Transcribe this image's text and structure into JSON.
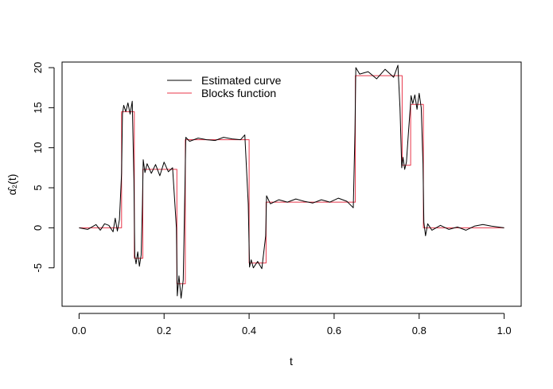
{
  "chart_data": {
    "type": "line",
    "title": "",
    "xlabel": "t",
    "ylabel": "α̂₂(t)",
    "xlim": [
      -0.04,
      1.04
    ],
    "ylim": [
      -9.8,
      20.7
    ],
    "x_ticks": [
      0.0,
      0.2,
      0.4,
      0.6,
      0.8,
      1.0
    ],
    "x_tick_labels": [
      "0.0",
      "0.2",
      "0.4",
      "0.6",
      "0.8",
      "1.0"
    ],
    "y_ticks": [
      -5,
      0,
      5,
      10,
      15,
      20
    ],
    "y_tick_labels": [
      "-5",
      "0",
      "5",
      "10",
      "15",
      "20"
    ],
    "grid": false,
    "legend_position": "top-left",
    "series": [
      {
        "name": "Blocks function",
        "color": "#e8364a",
        "interpolation": "step",
        "x": [
          0.0,
          0.1,
          0.13,
          0.15,
          0.23,
          0.25,
          0.4,
          0.44,
          0.65,
          0.76,
          0.78,
          0.81,
          1.0
        ],
        "values": [
          0.0,
          14.5,
          -3.8,
          7.3,
          -7.0,
          11.0,
          -4.4,
          3.2,
          19.0,
          7.8,
          15.4,
          0.0,
          0.0
        ]
      },
      {
        "name": "Estimated curve",
        "color": "#000000",
        "interpolation": "linear",
        "x": [
          0.0,
          0.02,
          0.04,
          0.05,
          0.06,
          0.07,
          0.08,
          0.085,
          0.09,
          0.095,
          0.1,
          0.102,
          0.105,
          0.11,
          0.115,
          0.12,
          0.125,
          0.129,
          0.131,
          0.134,
          0.138,
          0.142,
          0.146,
          0.149,
          0.151,
          0.155,
          0.16,
          0.17,
          0.18,
          0.19,
          0.2,
          0.21,
          0.22,
          0.229,
          0.231,
          0.235,
          0.24,
          0.245,
          0.249,
          0.251,
          0.26,
          0.28,
          0.3,
          0.32,
          0.34,
          0.36,
          0.38,
          0.39,
          0.398,
          0.401,
          0.405,
          0.41,
          0.42,
          0.43,
          0.439,
          0.441,
          0.45,
          0.47,
          0.49,
          0.51,
          0.53,
          0.55,
          0.57,
          0.59,
          0.61,
          0.63,
          0.645,
          0.649,
          0.651,
          0.66,
          0.68,
          0.7,
          0.72,
          0.74,
          0.75,
          0.755,
          0.759,
          0.762,
          0.766,
          0.77,
          0.775,
          0.779,
          0.781,
          0.785,
          0.79,
          0.795,
          0.8,
          0.805,
          0.809,
          0.811,
          0.815,
          0.82,
          0.83,
          0.85,
          0.87,
          0.89,
          0.91,
          0.93,
          0.95,
          0.97,
          1.0
        ],
        "values": [
          0.0,
          -0.2,
          0.4,
          -0.3,
          0.5,
          0.3,
          -0.5,
          1.2,
          -0.4,
          1.0,
          6.8,
          14.2,
          15.3,
          14.5,
          15.6,
          14.2,
          15.8,
          6.0,
          -3.5,
          -4.5,
          -3.0,
          -4.8,
          -3.4,
          3.0,
          8.5,
          6.9,
          8.0,
          6.8,
          7.9,
          6.5,
          8.2,
          7.0,
          7.5,
          0.0,
          -8.5,
          -6.0,
          -8.8,
          -6.5,
          5.0,
          11.3,
          10.8,
          11.2,
          11.0,
          10.9,
          11.3,
          11.1,
          11.0,
          11.6,
          3.0,
          -4.9,
          -4.0,
          -5.0,
          -4.2,
          -5.1,
          -1.0,
          4.0,
          3.0,
          3.5,
          3.2,
          3.6,
          3.3,
          3.1,
          3.5,
          3.2,
          3.7,
          3.3,
          2.5,
          12.0,
          20.0,
          19.2,
          19.5,
          18.6,
          19.8,
          18.8,
          20.3,
          15.0,
          7.5,
          8.8,
          7.3,
          8.2,
          12.0,
          15.0,
          16.5,
          15.5,
          16.6,
          14.8,
          16.8,
          15.0,
          8.0,
          0.7,
          -1.0,
          0.5,
          -0.3,
          0.3,
          -0.2,
          0.1,
          -0.3,
          0.2,
          0.4,
          0.2,
          0.0
        ]
      }
    ]
  }
}
